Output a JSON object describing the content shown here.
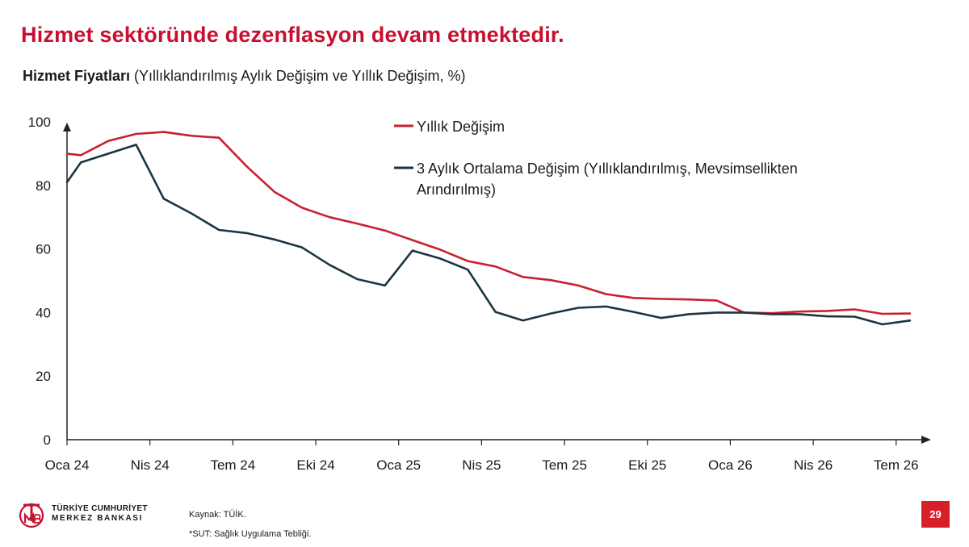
{
  "title": "Hizmet sektöründe dezenflasyon devam etmektedir.",
  "subtitle_bold": "Hizmet Fiyatları",
  "subtitle_rest": " (Yıllıklandırılmış Aylık Değişim ve Yıllık Değişim, %)",
  "footer": {
    "logo_line1": "TÜRKİYE CUMHURİYET",
    "logo_line2": "MERKEZ BANKASI",
    "source": "Kaynak: TÜİK.",
    "note": "*SUT: Sağlık Uygulama Tebliği.",
    "page_number": "29"
  },
  "colors": {
    "red": "#c8212f",
    "navy": "#1c3442",
    "title_red": "#c8102e"
  },
  "chart_data": {
    "type": "line",
    "title": "Hizmet Fiyatları (Yıllıklandırılmış Aylık Değişim ve Yıllık Değişim, %)",
    "xlabel": "",
    "ylabel": "",
    "ylim": [
      0,
      100
    ],
    "yticks": [
      0,
      20,
      40,
      60,
      80,
      100
    ],
    "xtick_labels": [
      "Oca 24",
      "Nis 24",
      "Tem 24",
      "Eki 24",
      "Oca 25",
      "Nis 25",
      "Tem 25",
      "Eki 25",
      "Oca 26",
      "Nis 26",
      "Tem 26"
    ],
    "x_label_month_index": [
      0,
      3,
      6,
      9,
      12,
      15,
      18,
      21,
      24,
      27,
      30
    ],
    "x_range_months": [
      0,
      31
    ],
    "grid": false,
    "legend_position": "top-right",
    "series": [
      {
        "name": "Yıllık Değişim",
        "color": "#c8212f",
        "x": [
          0,
          0.5,
          1.5,
          2.5,
          3.5,
          4.5,
          5.5,
          6.5,
          7.5,
          8.5,
          9.5,
          10.5,
          11.5,
          12.5,
          13.5,
          14.5,
          15.5,
          16.5,
          17.5,
          18.5,
          19.5,
          20.5,
          21.5,
          22.5,
          23.5,
          24.5,
          25.5,
          26.5,
          27.5,
          28.5,
          29.5,
          30.5
        ],
        "y": [
          90,
          89.5,
          94,
          96.2,
          96.8,
          95.6,
          95,
          86,
          78,
          73,
          70,
          68,
          65.8,
          62.8,
          59.8,
          56.2,
          54.5,
          51.2,
          50.2,
          48.5,
          45.8,
          44.6,
          44.3,
          44.1,
          43.8,
          40,
          39.8,
          40.3,
          40.5,
          41,
          39.6,
          39.7
        ]
      },
      {
        "name": "3 Aylık Ortalama Değişim (Yıllıklandırılmış, Mevsimsellikten Arındırılmış)",
        "color": "#1c3442",
        "x": [
          0,
          0.5,
          1.5,
          2.5,
          3.5,
          4.5,
          5.5,
          6.5,
          7.5,
          8.5,
          9.5,
          10.5,
          11.5,
          12.5,
          13.5,
          14.5,
          15.5,
          16.5,
          17.5,
          18.5,
          19.5,
          20.5,
          21.5,
          22.5,
          23.5,
          24.5,
          25.5,
          26.5,
          27.5,
          28.5,
          29.5,
          30.5
        ],
        "y": [
          81,
          87.2,
          90,
          92.8,
          75.8,
          71.2,
          66,
          65,
          63,
          60.5,
          55,
          50.5,
          48.5,
          59.5,
          57,
          53.5,
          40.2,
          37.5,
          39.7,
          41.5,
          41.9,
          40.2,
          38.3,
          39.5,
          40,
          40,
          39.5,
          39.5,
          38.8,
          38.7,
          36.3,
          37.5
        ]
      }
    ]
  }
}
